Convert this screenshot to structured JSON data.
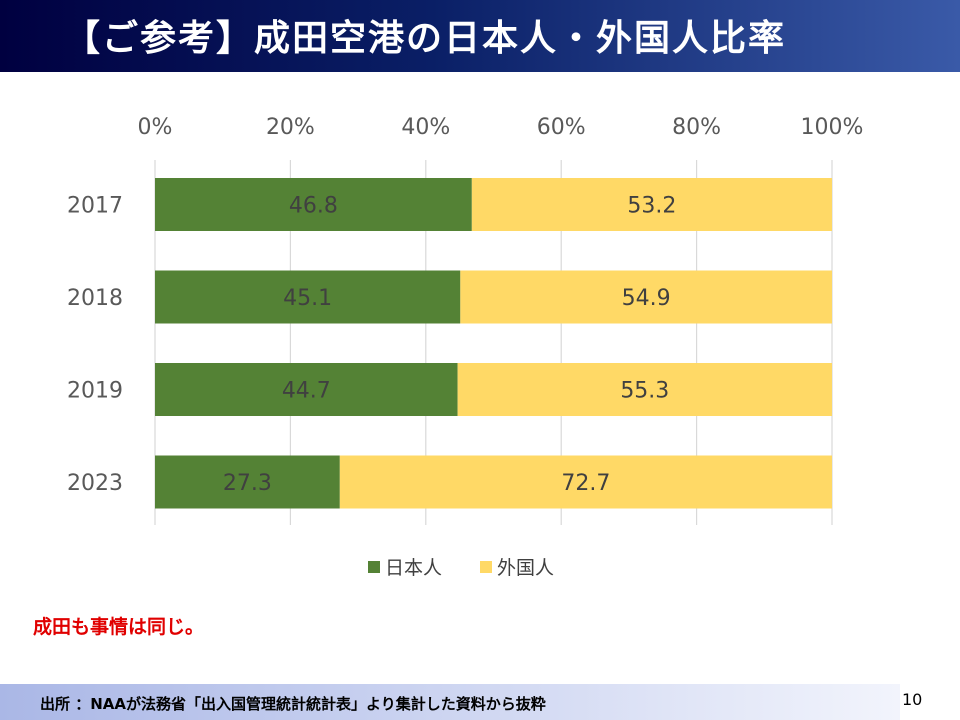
{
  "title": "【ご参考】成田空港の日本人・外国人比率",
  "note": "成田も事情は同じ。",
  "footer": {
    "source": "出所 ：NAAが法務省「出入国管理統計統計表」より集計した資料から抜粋"
  },
  "page_number": "10",
  "colors": {
    "japanese": "#548235",
    "foreign": "#ffd966",
    "note": "#e00000"
  },
  "chart_data": {
    "type": "bar",
    "orientation": "horizontal",
    "stacked": true,
    "categories": [
      "2017",
      "2018",
      "2019",
      "2023"
    ],
    "series": [
      {
        "name": "日本人",
        "values": [
          46.8,
          45.1,
          44.7,
          27.3
        ],
        "color": "#548235"
      },
      {
        "name": "外国人",
        "values": [
          53.2,
          54.9,
          55.3,
          72.7
        ],
        "color": "#ffd966"
      }
    ],
    "value_labels": [
      [
        "46.8",
        "45.1",
        "44.7",
        "27.3"
      ],
      [
        "53.2",
        "54.9",
        "55.3",
        "72.7"
      ]
    ],
    "xlim": [
      0,
      100
    ],
    "xticks": [
      "0%",
      "20%",
      "40%",
      "60%",
      "80%",
      "100%"
    ],
    "grid": true,
    "legend_position": "bottom"
  }
}
